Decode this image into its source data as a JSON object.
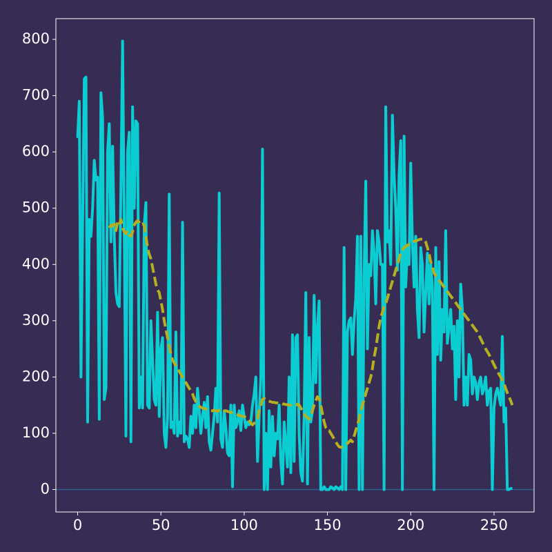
{
  "chart_data": {
    "type": "line",
    "x": [
      0,
      1,
      2,
      3,
      4,
      5,
      6,
      7,
      8,
      9,
      10,
      11,
      12,
      13,
      14,
      15,
      16,
      17,
      18,
      19,
      20,
      21,
      22,
      23,
      24,
      25,
      26,
      27,
      28,
      29,
      30,
      31,
      32,
      33,
      34,
      35,
      36,
      37,
      38,
      39,
      40,
      41,
      42,
      43,
      44,
      45,
      46,
      47,
      48,
      49,
      50,
      51,
      52,
      53,
      54,
      55,
      56,
      57,
      58,
      59,
      60,
      61,
      62,
      63,
      64,
      65,
      66,
      67,
      68,
      69,
      70,
      71,
      72,
      73,
      74,
      75,
      76,
      77,
      78,
      79,
      80,
      81,
      82,
      83,
      84,
      85,
      86,
      87,
      88,
      89,
      90,
      91,
      92,
      93,
      94,
      95,
      96,
      97,
      98,
      99,
      100,
      101,
      102,
      103,
      104,
      105,
      106,
      107,
      108,
      109,
      110,
      111,
      112,
      113,
      114,
      115,
      116,
      117,
      118,
      119,
      120,
      121,
      122,
      123,
      124,
      125,
      126,
      127,
      128,
      129,
      130,
      131,
      132,
      133,
      134,
      135,
      136,
      137,
      138,
      139,
      140,
      141,
      142,
      143,
      144,
      145,
      146,
      147,
      148,
      149,
      150,
      151,
      152,
      153,
      154,
      155,
      156,
      157,
      158,
      159,
      160,
      161,
      162,
      163,
      164,
      165,
      166,
      167,
      168,
      169,
      170,
      171,
      172,
      173,
      174,
      175,
      176,
      177,
      178,
      179,
      180,
      181,
      182,
      183,
      184,
      185,
      186,
      187,
      188,
      189,
      190,
      191,
      192,
      193,
      194,
      195,
      196,
      197,
      198,
      199,
      200,
      201,
      202,
      203,
      204,
      205,
      206,
      207,
      208,
      209,
      210,
      211,
      212,
      213,
      214,
      215,
      216,
      217,
      218,
      219,
      220,
      221,
      222,
      223,
      224,
      225,
      226,
      227,
      228,
      229,
      230,
      231,
      232,
      233,
      234,
      235,
      236,
      237,
      238,
      239,
      240,
      241,
      242,
      243,
      244,
      245,
      246,
      247,
      248,
      249,
      250,
      251,
      252,
      253,
      254,
      255,
      256,
      257,
      258,
      259,
      260,
      261
    ],
    "series": [
      {
        "color": "#0ccdd2",
        "dash": false,
        "values": [
          625,
          690,
          200,
          470,
          730,
          733,
          120,
          480,
          450,
          500,
          585,
          550,
          555,
          125,
          705,
          660,
          160,
          180,
          600,
          650,
          440,
          610,
          450,
          350,
          330,
          325,
          540,
          797,
          460,
          95,
          600,
          635,
          85,
          680,
          500,
          655,
          650,
          145,
          200,
          145,
          470,
          510,
          150,
          145,
          300,
          230,
          160,
          150,
          315,
          130,
          250,
          270,
          100,
          75,
          130,
          525,
          110,
          120,
          100,
          280,
          95,
          120,
          100,
          475,
          85,
          95,
          90,
          75,
          130,
          100,
          150,
          110,
          180,
          140,
          100,
          130,
          155,
          110,
          165,
          85,
          70,
          100,
          130,
          180,
          120,
          527,
          90,
          75,
          140,
          110,
          65,
          60,
          150,
          5,
          150,
          110,
          120,
          140,
          105,
          150,
          130,
          110,
          120,
          115,
          120,
          150,
          170,
          200,
          50,
          130,
          200,
          605,
          0,
          100,
          0,
          140,
          40,
          130,
          60,
          100,
          90,
          150,
          50,
          10,
          120,
          80,
          40,
          200,
          30,
          275,
          50,
          270,
          275,
          100,
          30,
          15,
          130,
          350,
          10,
          270,
          120,
          140,
          345,
          190,
          290,
          335,
          0,
          0,
          5,
          0,
          0,
          0,
          5,
          3,
          0,
          5,
          3,
          0,
          5,
          0,
          430,
          0,
          280,
          300,
          305,
          240,
          300,
          340,
          450,
          0,
          450,
          0,
          380,
          548,
          250,
          400,
          380,
          460,
          420,
          330,
          460,
          440,
          400,
          400,
          0,
          680,
          440,
          460,
          400,
          665,
          560,
          500,
          390,
          560,
          620,
          0,
          628,
          360,
          430,
          400,
          580,
          440,
          360,
          450,
          320,
          270,
          430,
          400,
          280,
          350,
          420,
          330,
          400,
          360,
          0,
          430,
          240,
          405,
          230,
          320,
          280,
          460,
          260,
          290,
          320,
          250,
          290,
          160,
          300,
          200,
          365,
          320,
          150,
          200,
          150,
          240,
          230,
          170,
          200,
          190,
          160,
          190,
          200,
          170,
          180,
          200,
          150,
          175,
          180,
          0,
          145,
          170,
          180,
          165,
          150,
          272,
          120,
          145,
          0,
          0,
          2,
          2
        ]
      },
      {
        "color": "#b5b021",
        "dash": true,
        "values": [
          null,
          null,
          null,
          null,
          null,
          null,
          null,
          null,
          null,
          null,
          null,
          null,
          null,
          null,
          null,
          null,
          null,
          null,
          null,
          465,
          470,
          468,
          472,
          460,
          475,
          470,
          480,
          465,
          458,
          455,
          460,
          452,
          450,
          458,
          470,
          475,
          478,
          475,
          470,
          472,
          470,
          450,
          430,
          418,
          410,
          395,
          380,
          365,
          355,
          350,
          335,
          320,
          300,
          285,
          270,
          255,
          240,
          230,
          225,
          220,
          215,
          210,
          205,
          200,
          195,
          190,
          185,
          180,
          175,
          170,
          162,
          156,
          150,
          148,
          146,
          145,
          144,
          143,
          142,
          141,
          140,
          140,
          141,
          140,
          139,
          141,
          140,
          142,
          140,
          140,
          139,
          138,
          137,
          136,
          135,
          134,
          133,
          132,
          131,
          130,
          130,
          128,
          125,
          122,
          118,
          115,
          118,
          120,
          125,
          140,
          150,
          160,
          162,
          160,
          158,
          157,
          156,
          155,
          155,
          154,
          154,
          153,
          153,
          152,
          152,
          151,
          151,
          150,
          150,
          150,
          150,
          150,
          152,
          150,
          145,
          140,
          135,
          130,
          128,
          125,
          130,
          140,
          150,
          158,
          165,
          162,
          150,
          135,
          120,
          110,
          105,
          105,
          100,
          95,
          90,
          85,
          80,
          76,
          75,
          76,
          77,
          80,
          82,
          85,
          88,
          85,
          95,
          105,
          115,
          125,
          140,
          150,
          160,
          170,
          180,
          190,
          200,
          215,
          235,
          250,
          270,
          290,
          305,
          315,
          325,
          330,
          340,
          350,
          360,
          370,
          380,
          390,
          400,
          410,
          420,
          425,
          430,
          432,
          434,
          436,
          438,
          440,
          441,
          442,
          443,
          444,
          445,
          445,
          445,
          440,
          430,
          420,
          405,
          395,
          385,
          380,
          376,
          372,
          368,
          364,
          360,
          356,
          352,
          348,
          344,
          340,
          336,
          332,
          328,
          324,
          320,
          316,
          312,
          308,
          304,
          300,
          296,
          292,
          288,
          284,
          280,
          274,
          268,
          262,
          256,
          250,
          245,
          240,
          234,
          228,
          222,
          216,
          210,
          205,
          200,
          195,
          188,
          180,
          172,
          165,
          158,
          150
        ]
      }
    ],
    "hline": 0,
    "hline_color": "#2f5f8f",
    "xlim": [
      -13.05,
      274.05
    ],
    "xticks": [
      0,
      50,
      100,
      150,
      200,
      250
    ],
    "ylim": [
      -39.85,
      836.85
    ],
    "yticks": [
      0,
      100,
      200,
      300,
      400,
      500,
      600,
      700,
      800
    ]
  }
}
